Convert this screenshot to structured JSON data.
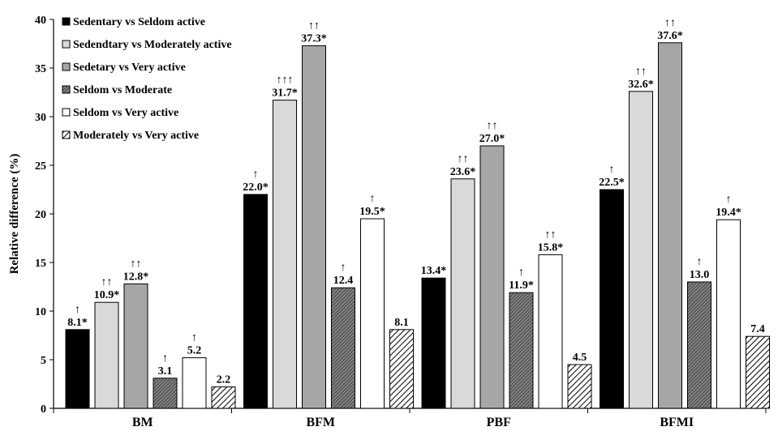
{
  "chart_data": {
    "type": "bar",
    "ylabel": "Relative difference (%)",
    "ylim": [
      0,
      40
    ],
    "yticks": [
      0,
      5,
      10,
      15,
      20,
      25,
      30,
      35,
      40
    ],
    "grid": false,
    "legend_position": "top-left",
    "categories": [
      "BM",
      "BFM",
      "PBF",
      "BFMI"
    ],
    "series": [
      {
        "name": "Sedentary vs Seldom active",
        "fill": "#000000",
        "pattern": "solid",
        "values": [
          8.1,
          22.0,
          13.4,
          22.5
        ],
        "labels": [
          "8.1*",
          "22.0*",
          "13.4*",
          "22.5*"
        ],
        "arrows": [
          "↑",
          "↑",
          "",
          "↑"
        ]
      },
      {
        "name": "Sedendtary vs Moderately active",
        "fill": "#d9d9d9",
        "pattern": "solid",
        "values": [
          10.9,
          31.7,
          23.6,
          32.6
        ],
        "labels": [
          "10.9*",
          "31.7*",
          "23.6*",
          "32.6*"
        ],
        "arrows": [
          "↑↑",
          "↑↑↑",
          "↑↑",
          "↑↑"
        ]
      },
      {
        "name": "Sedetary vs Very active",
        "fill": "#a6a6a6",
        "pattern": "solid",
        "values": [
          12.8,
          37.3,
          27.0,
          37.6
        ],
        "labels": [
          "12.8*",
          "37.3*",
          "27.0*",
          "37.6*"
        ],
        "arrows": [
          "↑↑",
          "↑↑",
          "↑↑",
          "↑↑"
        ]
      },
      {
        "name": "Seldom vs Moderate",
        "fill": "#7f7f7f",
        "pattern": "dense",
        "values": [
          3.1,
          12.4,
          11.9,
          13.0
        ],
        "labels": [
          "3.1",
          "12.4",
          "11.9*",
          "13.0"
        ],
        "arrows": [
          "↑",
          "↑",
          "↑",
          "↑"
        ]
      },
      {
        "name": "Seldom vs Very active",
        "fill": "#ffffff",
        "pattern": "solid",
        "values": [
          5.2,
          19.5,
          15.8,
          19.4
        ],
        "labels": [
          "5.2",
          "19.5*",
          "15.8*",
          "19.4*"
        ],
        "arrows": [
          "↑",
          "↑",
          "↑↑",
          "↑"
        ]
      },
      {
        "name": "Moderately vs Very active",
        "fill": "#ffffff",
        "pattern": "hatch",
        "values": [
          2.2,
          8.1,
          4.5,
          7.4
        ],
        "labels": [
          "2.2",
          "8.1",
          "4.5",
          "7.4"
        ],
        "arrows": [
          "",
          "",
          "",
          ""
        ]
      }
    ]
  }
}
